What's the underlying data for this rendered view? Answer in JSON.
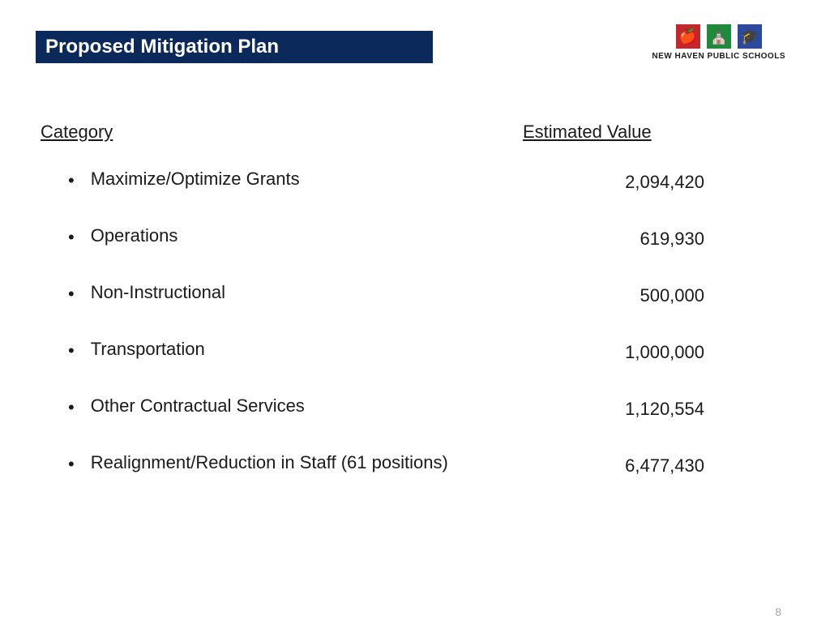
{
  "title": {
    "text": "Proposed Mitigation Plan",
    "bg_color": "#0b2a5b",
    "text_color": "#ffffff",
    "font_size": 24
  },
  "logo": {
    "text": "NEW HAVEN PUBLIC SCHOOLS",
    "boxes": [
      {
        "bg": "#c1272d",
        "glyph": "🍎"
      },
      {
        "bg": "#1f8a3b",
        "glyph": "⛪"
      },
      {
        "bg": "#2b4a9b",
        "glyph": "🎓"
      }
    ]
  },
  "headers": {
    "category": "Category",
    "value": "Estimated Value",
    "font_size": 22,
    "color": "#1a1a1a"
  },
  "rows": [
    {
      "category": "Maximize/Optimize Grants",
      "value": "2,094,420"
    },
    {
      "category": "Operations",
      "value": "619,930"
    },
    {
      "category": "Non-Instructional",
      "value": "500,000"
    },
    {
      "category": "Transportation",
      "value": "1,000,000"
    },
    {
      "category": "Other Contractual Services",
      "value": "1,120,554"
    },
    {
      "category": "Realignment/Reduction in Staff (61 positions)",
      "value": "6,477,430"
    }
  ],
  "row_style": {
    "font_size": 22,
    "color": "#1a1a1a",
    "bullet_char": "•"
  },
  "page_number": "8"
}
